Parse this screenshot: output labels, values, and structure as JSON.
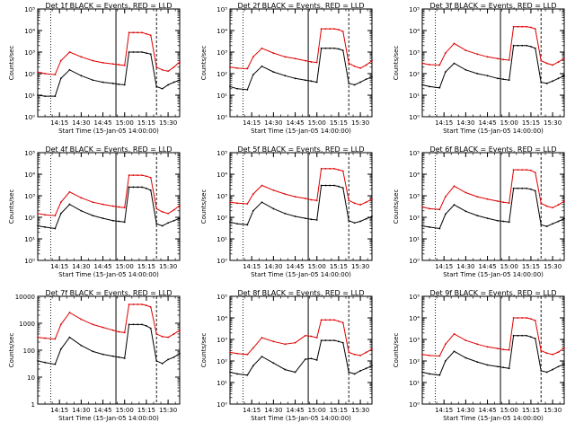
{
  "figure": {
    "colors": {
      "events": "#000000",
      "lld": "#dd0000",
      "axes": "#000000",
      "background": "#ffffff"
    }
  },
  "chart_data": [
    {
      "type": "line",
      "title": "Det 1f BLACK = Events, RED = LLD",
      "xlabel": "Start Time (15-Jan-05 14:00:00)",
      "ylabel": "Counts/sec",
      "log_y": true,
      "ylim": [
        1,
        100000
      ],
      "ytick_labels": [
        "10⁰",
        "10¹",
        "10²",
        "10³",
        "10⁴",
        "10⁵"
      ],
      "xlim": [
        "14:00",
        "15:38"
      ],
      "xtick_labels": [
        "14:15",
        "14:30",
        "14:45",
        "15:00",
        "15:15",
        "15:30"
      ],
      "x": [
        "14:00",
        "14:05",
        "14:12",
        "14:16",
        "14:22",
        "14:30",
        "14:38",
        "14:45",
        "14:52",
        "14:56",
        "15:00",
        "15:03",
        "15:06",
        "15:09",
        "15:12",
        "15:15",
        "15:18",
        "15:22",
        "15:26",
        "15:30",
        "15:34",
        "15:38"
      ],
      "series": [
        {
          "name": "LLD",
          "values": [
            120,
            100,
            90,
            400,
            1000,
            600,
            400,
            320,
            280,
            260,
            240,
            8000,
            8000,
            8000,
            8000,
            7000,
            6000,
            200,
            150,
            130,
            200,
            350
          ]
        },
        {
          "name": "Events",
          "values": [
            10,
            9,
            9,
            60,
            150,
            80,
            50,
            40,
            35,
            32,
            30,
            1000,
            1000,
            1000,
            1000,
            900,
            800,
            25,
            20,
            30,
            40,
            50
          ]
        }
      ],
      "vertical_lines": [
        {
          "x": "14:09",
          "style": "dotted"
        },
        {
          "x": "14:54",
          "style": "solid"
        },
        {
          "x": "15:22",
          "style": "dashed"
        }
      ],
      "grid": false,
      "legend": "none"
    },
    {
      "type": "line",
      "title": "Det 2f BLACK = Events, RED = LLD",
      "xlabel": "Start Time (15-Jan-05 14:00:00)",
      "ylabel": "Counts/sec",
      "log_y": true,
      "ylim": [
        1,
        100000
      ],
      "ytick_labels": [
        "10⁰",
        "10¹",
        "10²",
        "10³",
        "10⁴",
        "10⁵"
      ],
      "xlim": [
        "14:00",
        "15:38"
      ],
      "xtick_labels": [
        "14:15",
        "14:30",
        "14:45",
        "15:00",
        "15:15",
        "15:30"
      ],
      "x": [
        "14:00",
        "14:05",
        "14:12",
        "14:16",
        "14:22",
        "14:30",
        "14:38",
        "14:45",
        "14:52",
        "14:56",
        "15:00",
        "15:03",
        "15:06",
        "15:09",
        "15:12",
        "15:15",
        "15:18",
        "15:22",
        "15:26",
        "15:30",
        "15:34",
        "15:38"
      ],
      "series": [
        {
          "name": "LLD",
          "values": [
            200,
            180,
            170,
            600,
            1500,
            900,
            600,
            500,
            400,
            350,
            330,
            12000,
            12000,
            12000,
            12000,
            11000,
            9000,
            300,
            220,
            180,
            250,
            400
          ]
        },
        {
          "name": "Events",
          "values": [
            25,
            20,
            18,
            90,
            220,
            120,
            80,
            60,
            50,
            45,
            40,
            1500,
            1500,
            1500,
            1500,
            1400,
            1200,
            35,
            30,
            40,
            55,
            70
          ]
        }
      ],
      "vertical_lines": [
        {
          "x": "14:09",
          "style": "dotted"
        },
        {
          "x": "14:54",
          "style": "solid"
        },
        {
          "x": "15:22",
          "style": "dashed"
        }
      ],
      "grid": false,
      "legend": "none"
    },
    {
      "type": "line",
      "title": "Det 3f BLACK = Events, RED = LLD",
      "xlabel": "Start Time (15-Jan-05 14:00:00)",
      "ylabel": "Counts/sec",
      "log_y": true,
      "ylim": [
        1,
        100000
      ],
      "ytick_labels": [
        "10⁰",
        "10¹",
        "10²",
        "10³",
        "10⁴",
        "10⁵"
      ],
      "xlim": [
        "14:00",
        "15:38"
      ],
      "xtick_labels": [
        "14:15",
        "14:30",
        "14:45",
        "15:00",
        "15:15",
        "15:30"
      ],
      "x": [
        "14:00",
        "14:05",
        "14:12",
        "14:16",
        "14:22",
        "14:30",
        "14:38",
        "14:45",
        "14:52",
        "14:56",
        "15:00",
        "15:03",
        "15:06",
        "15:09",
        "15:12",
        "15:15",
        "15:18",
        "15:22",
        "15:26",
        "15:30",
        "15:34",
        "15:38"
      ],
      "series": [
        {
          "name": "LLD",
          "values": [
            300,
            260,
            250,
            900,
            2500,
            1200,
            800,
            600,
            500,
            450,
            420,
            15000,
            15000,
            15000,
            15000,
            14000,
            12000,
            400,
            300,
            250,
            350,
            500
          ]
        },
        {
          "name": "Events",
          "values": [
            30,
            25,
            22,
            120,
            300,
            150,
            100,
            80,
            60,
            55,
            50,
            2000,
            2000,
            2000,
            2000,
            1800,
            1500,
            40,
            35,
            45,
            60,
            80
          ]
        }
      ],
      "vertical_lines": [
        {
          "x": "14:09",
          "style": "dotted"
        },
        {
          "x": "14:54",
          "style": "solid"
        },
        {
          "x": "15:22",
          "style": "dashed"
        }
      ],
      "grid": false,
      "legend": "none"
    },
    {
      "type": "line",
      "title": "Det 4f BLACK = Events, RED = LLD",
      "xlabel": "Start Time (15-Jan-05 14:00:00)",
      "ylabel": "Counts/sec",
      "log_y": true,
      "ylim": [
        1,
        100000
      ],
      "ytick_labels": [
        "10⁰",
        "10¹",
        "10²",
        "10³",
        "10⁴",
        "10⁵"
      ],
      "xlim": [
        "14:00",
        "15:38"
      ],
      "xtick_labels": [
        "14:15",
        "14:30",
        "14:45",
        "15:00",
        "15:15",
        "15:30"
      ],
      "x": [
        "14:00",
        "14:05",
        "14:12",
        "14:16",
        "14:22",
        "14:30",
        "14:38",
        "14:45",
        "14:52",
        "14:56",
        "15:00",
        "15:03",
        "15:06",
        "15:09",
        "15:12",
        "15:15",
        "15:18",
        "15:22",
        "15:26",
        "15:30",
        "15:34",
        "15:38"
      ],
      "series": [
        {
          "name": "LLD",
          "values": [
            150,
            130,
            120,
            500,
            1500,
            800,
            500,
            400,
            330,
            300,
            280,
            9000,
            9000,
            9000,
            9000,
            8000,
            7000,
            250,
            180,
            150,
            220,
            350
          ]
        },
        {
          "name": "Events",
          "values": [
            40,
            35,
            30,
            150,
            400,
            200,
            120,
            90,
            70,
            65,
            60,
            2500,
            2500,
            2500,
            2500,
            2200,
            1800,
            50,
            40,
            55,
            70,
            90
          ]
        }
      ],
      "vertical_lines": [
        {
          "x": "14:09",
          "style": "dotted"
        },
        {
          "x": "14:54",
          "style": "solid"
        },
        {
          "x": "15:22",
          "style": "dashed"
        }
      ],
      "grid": false,
      "legend": "none"
    },
    {
      "type": "line",
      "title": "Det 5f BLACK = Events, RED = LLD",
      "xlabel": "Start Time (15-Jan-05 14:00:00)",
      "ylabel": "Counts/sec",
      "log_y": true,
      "ylim": [
        1,
        100000
      ],
      "ytick_labels": [
        "10⁰",
        "10¹",
        "10²",
        "10³",
        "10⁴",
        "10⁵"
      ],
      "xlim": [
        "14:00",
        "15:38"
      ],
      "xtick_labels": [
        "14:15",
        "14:30",
        "14:45",
        "15:00",
        "15:15",
        "15:30"
      ],
      "x": [
        "14:00",
        "14:05",
        "14:12",
        "14:16",
        "14:22",
        "14:30",
        "14:38",
        "14:45",
        "14:52",
        "14:56",
        "15:00",
        "15:03",
        "15:06",
        "15:09",
        "15:12",
        "15:15",
        "15:18",
        "15:22",
        "15:26",
        "15:30",
        "15:34",
        "15:38"
      ],
      "series": [
        {
          "name": "LLD",
          "values": [
            500,
            450,
            420,
            1200,
            3000,
            1800,
            1200,
            900,
            750,
            650,
            600,
            18000,
            18000,
            18000,
            18000,
            16000,
            14000,
            600,
            450,
            380,
            500,
            700
          ]
        },
        {
          "name": "Events",
          "values": [
            60,
            50,
            45,
            200,
            500,
            250,
            150,
            110,
            90,
            80,
            75,
            3000,
            3000,
            3000,
            3000,
            2700,
            2300,
            70,
            55,
            65,
            85,
            110
          ]
        }
      ],
      "vertical_lines": [
        {
          "x": "14:09",
          "style": "dotted"
        },
        {
          "x": "14:54",
          "style": "solid"
        },
        {
          "x": "15:22",
          "style": "dashed"
        }
      ],
      "grid": false,
      "legend": "none"
    },
    {
      "type": "line",
      "title": "Det 6f BLACK = Events, RED = LLD",
      "xlabel": "Start Time (15-Jan-05 14:00:00)",
      "ylabel": "Counts/sec",
      "log_y": true,
      "ylim": [
        1,
        100000
      ],
      "ytick_labels": [
        "10⁰",
        "10¹",
        "10²",
        "10³",
        "10⁴",
        "10⁵"
      ],
      "xlim": [
        "14:00",
        "15:38"
      ],
      "xtick_labels": [
        "14:15",
        "14:30",
        "14:45",
        "15:00",
        "15:15",
        "15:30"
      ],
      "x": [
        "14:00",
        "14:05",
        "14:12",
        "14:16",
        "14:22",
        "14:30",
        "14:38",
        "14:45",
        "14:52",
        "14:56",
        "15:00",
        "15:03",
        "15:06",
        "15:09",
        "15:12",
        "15:15",
        "15:18",
        "15:22",
        "15:26",
        "15:30",
        "15:34",
        "15:38"
      ],
      "series": [
        {
          "name": "LLD",
          "values": [
            300,
            250,
            230,
            900,
            2800,
            1400,
            900,
            700,
            560,
            500,
            460,
            16000,
            16000,
            16000,
            16000,
            15000,
            12000,
            450,
            330,
            280,
            380,
            550
          ]
        },
        {
          "name": "Events",
          "values": [
            40,
            35,
            30,
            140,
            380,
            190,
            120,
            90,
            70,
            65,
            60,
            2200,
            2200,
            2200,
            2200,
            2000,
            1700,
            45,
            38,
            50,
            65,
            85
          ]
        }
      ],
      "vertical_lines": [
        {
          "x": "14:09",
          "style": "dotted"
        },
        {
          "x": "14:54",
          "style": "solid"
        },
        {
          "x": "15:22",
          "style": "dashed"
        }
      ],
      "grid": false,
      "legend": "none"
    },
    {
      "type": "line",
      "title": "Det 7f BLACK = Events, RED = LLD",
      "xlabel": "Start Time (15-Jan-05 14:00:00)",
      "ylabel": "Counts/sec",
      "log_y": true,
      "ylim": [
        1,
        10000
      ],
      "ytick_labels": [
        "1",
        "10",
        "100",
        "1000",
        "10000"
      ],
      "xlim": [
        "14:00",
        "15:38"
      ],
      "xtick_labels": [
        "14:15",
        "14:30",
        "14:45",
        "15:00",
        "15:15",
        "15:30"
      ],
      "x": [
        "14:00",
        "14:05",
        "14:12",
        "14:16",
        "14:22",
        "14:30",
        "14:38",
        "14:45",
        "14:52",
        "14:56",
        "15:00",
        "15:03",
        "15:06",
        "15:09",
        "15:12",
        "15:15",
        "15:18",
        "15:22",
        "15:26",
        "15:30",
        "15:34",
        "15:38"
      ],
      "series": [
        {
          "name": "LLD",
          "values": [
            300,
            280,
            260,
            900,
            2500,
            1400,
            900,
            700,
            550,
            480,
            450,
            5000,
            5000,
            5000,
            5000,
            4600,
            4000,
            400,
            320,
            300,
            400,
            550
          ]
        },
        {
          "name": "Events",
          "values": [
            40,
            35,
            30,
            110,
            300,
            150,
            90,
            70,
            60,
            55,
            50,
            900,
            900,
            900,
            900,
            800,
            650,
            40,
            32,
            45,
            55,
            75
          ]
        }
      ],
      "vertical_lines": [
        {
          "x": "14:09",
          "style": "dotted"
        },
        {
          "x": "14:54",
          "style": "solid"
        },
        {
          "x": "15:22",
          "style": "dashed"
        }
      ],
      "grid": false,
      "legend": "none"
    },
    {
      "type": "line",
      "title": "Det 8f BLACK = Events, RED = LLD",
      "xlabel": "Start Time (15-Jan-05 14:00:00)",
      "ylabel": "Counts/sec",
      "log_y": true,
      "ylim": [
        1,
        100000
      ],
      "ytick_labels": [
        "10⁰",
        "10¹",
        "10²",
        "10³",
        "10⁴",
        "10⁵"
      ],
      "xlim": [
        "14:00",
        "15:38"
      ],
      "xtick_labels": [
        "14:15",
        "14:30",
        "14:45",
        "15:00",
        "15:15",
        "15:30"
      ],
      "x": [
        "14:00",
        "14:05",
        "14:12",
        "14:16",
        "14:22",
        "14:30",
        "14:38",
        "14:45",
        "14:52",
        "14:56",
        "15:00",
        "15:03",
        "15:06",
        "15:09",
        "15:12",
        "15:15",
        "15:18",
        "15:22",
        "15:26",
        "15:30",
        "15:34",
        "15:38"
      ],
      "series": [
        {
          "name": "LLD",
          "values": [
            250,
            220,
            200,
            400,
            1200,
            800,
            600,
            700,
            1500,
            1400,
            1200,
            8000,
            8000,
            8000,
            8000,
            7000,
            6000,
            250,
            200,
            180,
            250,
            350
          ]
        },
        {
          "name": "Events",
          "values": [
            30,
            25,
            22,
            60,
            160,
            80,
            40,
            30,
            120,
            130,
            110,
            900,
            900,
            900,
            900,
            800,
            700,
            30,
            25,
            35,
            45,
            60
          ]
        }
      ],
      "vertical_lines": [
        {
          "x": "14:09",
          "style": "dotted"
        },
        {
          "x": "14:54",
          "style": "solid"
        },
        {
          "x": "15:22",
          "style": "dashed"
        }
      ],
      "grid": false,
      "legend": "none"
    },
    {
      "type": "line",
      "title": "Det 9f BLACK = Events, RED = LLD",
      "xlabel": "Start Time (15-Jan-05 14:00:00)",
      "ylabel": "Counts/sec",
      "log_y": true,
      "ylim": [
        1,
        100000
      ],
      "ytick_labels": [
        "10⁰",
        "10¹",
        "10²",
        "10³",
        "10⁴",
        "10⁵"
      ],
      "xlim": [
        "14:00",
        "15:38"
      ],
      "xtick_labels": [
        "14:15",
        "14:30",
        "14:45",
        "15:00",
        "15:15",
        "15:30"
      ],
      "x": [
        "14:00",
        "14:05",
        "14:12",
        "14:16",
        "14:22",
        "14:30",
        "14:38",
        "14:45",
        "14:52",
        "14:56",
        "15:00",
        "15:03",
        "15:06",
        "15:09",
        "15:12",
        "15:15",
        "15:18",
        "15:22",
        "15:26",
        "15:30",
        "15:34",
        "15:38"
      ],
      "series": [
        {
          "name": "LLD",
          "values": [
            200,
            180,
            170,
            600,
            1800,
            900,
            600,
            450,
            380,
            340,
            320,
            10000,
            10000,
            10000,
            10000,
            9000,
            7500,
            300,
            230,
            200,
            260,
            400
          ]
        },
        {
          "name": "Events",
          "values": [
            30,
            25,
            22,
            100,
            280,
            140,
            90,
            65,
            55,
            50,
            45,
            1500,
            1500,
            1500,
            1500,
            1300,
            1100,
            35,
            30,
            40,
            55,
            70
          ]
        }
      ],
      "vertical_lines": [
        {
          "x": "14:09",
          "style": "dotted"
        },
        {
          "x": "14:54",
          "style": "solid"
        },
        {
          "x": "15:22",
          "style": "dashed"
        }
      ],
      "grid": false,
      "legend": "none"
    }
  ]
}
